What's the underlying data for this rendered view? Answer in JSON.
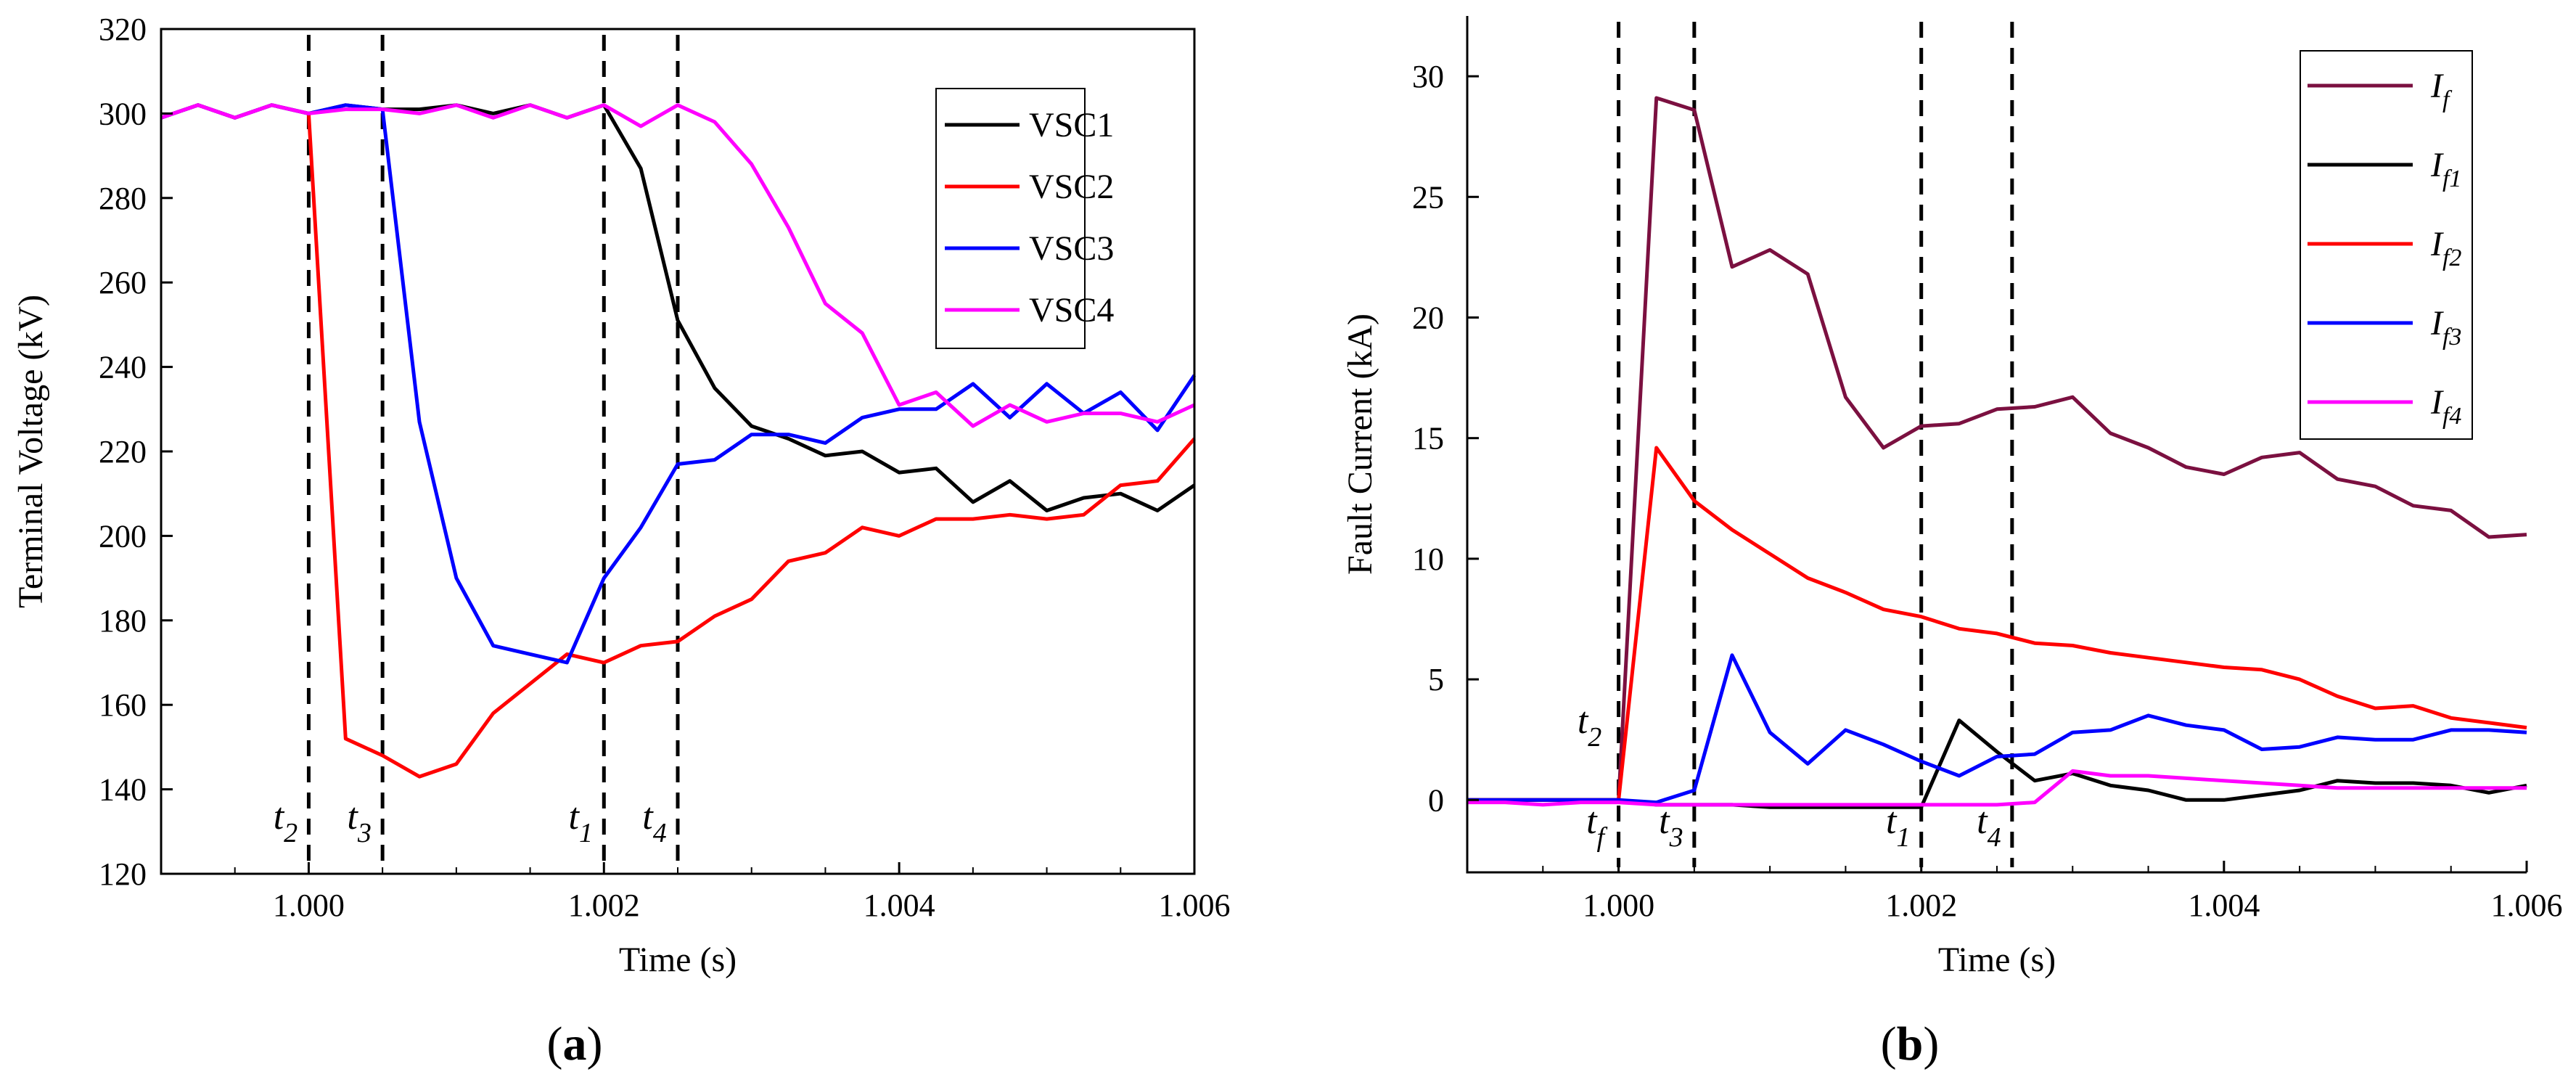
{
  "figure": {
    "panel_a_label": {
      "open": "(",
      "letter": "a",
      "close": ")"
    },
    "panel_b_label": {
      "open": "(",
      "letter": "b",
      "close": ")"
    }
  },
  "chart_data": [
    {
      "panel": "a",
      "type": "line",
      "title": "",
      "xlabel": "Time (s)",
      "ylabel": "Terminal Voltage (kV)",
      "xlim": [
        0.999,
        1.006
      ],
      "ylim": [
        120,
        320
      ],
      "xticks": [
        1.0,
        1.002,
        1.004,
        1.006
      ],
      "xtick_labels": [
        "1.000",
        "1.002",
        "1.004",
        "1.006"
      ],
      "yticks": [
        120,
        140,
        160,
        180,
        200,
        220,
        240,
        260,
        280,
        300,
        320
      ],
      "ytick_labels": [
        "120",
        "140",
        "160",
        "180",
        "200",
        "220",
        "240",
        "260",
        "280",
        "300",
        "320"
      ],
      "legend_position": "top-right",
      "series": [
        {
          "name": "VSC1",
          "color": "#000000",
          "x": [
            0.999,
            0.99925,
            0.9995,
            0.99975,
            1.0,
            1.00025,
            1.0005,
            1.00075,
            1.001,
            1.00125,
            1.0015,
            1.00175,
            1.002,
            1.00225,
            1.0025,
            1.00275,
            1.003,
            1.00325,
            1.0035,
            1.00375,
            1.004,
            1.00425,
            1.0045,
            1.00475,
            1.005,
            1.00525,
            1.0055,
            1.00575,
            1.006
          ],
          "y": [
            299,
            302,
            299,
            302,
            300,
            302,
            301,
            301,
            302,
            300,
            302,
            299,
            302,
            287,
            251,
            235,
            226,
            223,
            219,
            220,
            215,
            216,
            208,
            213,
            206,
            209,
            210,
            206,
            212
          ]
        },
        {
          "name": "VSC2",
          "color": "#ff0000",
          "x": [
            0.999,
            0.99925,
            0.9995,
            0.99975,
            1.0,
            1.00025,
            1.0005,
            1.00075,
            1.001,
            1.00125,
            1.0015,
            1.00175,
            1.002,
            1.00225,
            1.0025,
            1.00275,
            1.003,
            1.00325,
            1.0035,
            1.00375,
            1.004,
            1.00425,
            1.0045,
            1.00475,
            1.005,
            1.00525,
            1.0055,
            1.00575,
            1.006
          ],
          "y": [
            299,
            302,
            299,
            302,
            300,
            152,
            148,
            143,
            146,
            158,
            165,
            172,
            170,
            174,
            175,
            181,
            185,
            194,
            196,
            202,
            200,
            204,
            204,
            205,
            204,
            205,
            212,
            213,
            223
          ]
        },
        {
          "name": "VSC3",
          "color": "#0000ff",
          "x": [
            0.999,
            0.99925,
            0.9995,
            0.99975,
            1.0,
            1.00025,
            1.0005,
            1.00075,
            1.001,
            1.00125,
            1.0015,
            1.00175,
            1.002,
            1.00225,
            1.0025,
            1.00275,
            1.003,
            1.00325,
            1.0035,
            1.00375,
            1.004,
            1.00425,
            1.0045,
            1.00475,
            1.005,
            1.00525,
            1.0055,
            1.00575,
            1.006
          ],
          "y": [
            299,
            302,
            299,
            302,
            300,
            302,
            301,
            227,
            190,
            174,
            172,
            170,
            190,
            202,
            217,
            218,
            224,
            224,
            222,
            228,
            230,
            230,
            236,
            228,
            236,
            229,
            234,
            225,
            238
          ]
        },
        {
          "name": "VSC4",
          "color": "#ff00ff",
          "x": [
            0.999,
            0.99925,
            0.9995,
            0.99975,
            1.0,
            1.00025,
            1.0005,
            1.00075,
            1.001,
            1.00125,
            1.0015,
            1.00175,
            1.002,
            1.00225,
            1.0025,
            1.00275,
            1.003,
            1.00325,
            1.0035,
            1.00375,
            1.004,
            1.00425,
            1.0045,
            1.00475,
            1.005,
            1.00525,
            1.0055,
            1.00575,
            1.006
          ],
          "y": [
            299,
            302,
            299,
            302,
            300,
            301,
            301,
            300,
            302,
            299,
            302,
            299,
            302,
            297,
            302,
            298,
            288,
            273,
            255,
            248,
            231,
            234,
            226,
            231,
            227,
            229,
            229,
            227,
            231
          ]
        }
      ],
      "event_markers": [
        {
          "x": 1.0,
          "base": "t",
          "sub": "2"
        },
        {
          "x": 1.0005,
          "base": "t",
          "sub": "3"
        },
        {
          "x": 1.002,
          "base": "t",
          "sub": "1"
        },
        {
          "x": 1.0025,
          "base": "t",
          "sub": "4"
        }
      ]
    },
    {
      "panel": "b",
      "type": "line",
      "title": "",
      "xlabel": "Time (s)",
      "ylabel": "Fault Current (kA)",
      "xlim": [
        0.999,
        1.006
      ],
      "ylim": [
        -3,
        32.5
      ],
      "xticks": [
        1.0,
        1.002,
        1.004,
        1.006
      ],
      "xtick_labels": [
        "1.000",
        "1.002",
        "1.004",
        "1.006"
      ],
      "yticks": [
        0,
        5,
        10,
        15,
        20,
        25,
        30
      ],
      "ytick_labels": [
        "0",
        "5",
        "10",
        "15",
        "20",
        "25",
        "30"
      ],
      "legend_position": "top-right",
      "series": [
        {
          "name": "If",
          "label_base": "I",
          "label_sub": "f",
          "color": "#7b1040",
          "x": [
            0.999,
            0.99925,
            0.9995,
            0.99975,
            1.0,
            1.00025,
            1.0005,
            1.00075,
            1.001,
            1.00125,
            1.0015,
            1.00175,
            1.002,
            1.00225,
            1.0025,
            1.00275,
            1.003,
            1.00325,
            1.0035,
            1.00375,
            1.004,
            1.00425,
            1.0045,
            1.00475,
            1.005,
            1.00525,
            1.0055,
            1.00575,
            1.006
          ],
          "y": [
            0,
            0,
            0,
            0,
            0,
            29.1,
            28.6,
            22.1,
            22.8,
            21.8,
            16.7,
            14.6,
            15.5,
            15.6,
            16.2,
            16.3,
            16.7,
            15.2,
            14.6,
            13.8,
            13.5,
            14.2,
            14.4,
            13.3,
            13.0,
            12.2,
            12.0,
            10.9,
            11.0
          ]
        },
        {
          "name": "If1",
          "label_base": "I",
          "label_sub": "f1",
          "color": "#000000",
          "x": [
            0.999,
            0.99925,
            0.9995,
            0.99975,
            1.0,
            1.00025,
            1.0005,
            1.00075,
            1.001,
            1.00125,
            1.0015,
            1.00175,
            1.002,
            1.00225,
            1.0025,
            1.00275,
            1.003,
            1.00325,
            1.0035,
            1.00375,
            1.004,
            1.00425,
            1.0045,
            1.00475,
            1.005,
            1.00525,
            1.0055,
            1.00575,
            1.006
          ],
          "y": [
            0,
            0,
            0,
            0,
            0,
            -0.2,
            -0.2,
            -0.2,
            -0.3,
            -0.3,
            -0.3,
            -0.3,
            -0.3,
            3.3,
            2.0,
            0.8,
            1.1,
            0.6,
            0.4,
            0.0,
            0.0,
            0.2,
            0.4,
            0.8,
            0.7,
            0.7,
            0.6,
            0.3,
            0.6
          ]
        },
        {
          "name": "If2",
          "label_base": "I",
          "label_sub": "f2",
          "color": "#ff0000",
          "x": [
            0.999,
            0.99925,
            0.9995,
            0.99975,
            1.0,
            1.00025,
            1.0005,
            1.00075,
            1.001,
            1.00125,
            1.0015,
            1.00175,
            1.002,
            1.00225,
            1.0025,
            1.00275,
            1.003,
            1.00325,
            1.0035,
            1.00375,
            1.004,
            1.00425,
            1.0045,
            1.00475,
            1.005,
            1.00525,
            1.0055,
            1.00575,
            1.006
          ],
          "y": [
            0,
            0,
            0,
            0,
            0,
            14.6,
            12.4,
            11.2,
            10.2,
            9.2,
            8.6,
            7.9,
            7.6,
            7.1,
            6.9,
            6.5,
            6.4,
            6.1,
            5.9,
            5.7,
            5.5,
            5.4,
            5.0,
            4.3,
            3.8,
            3.9,
            3.4,
            3.2,
            3.0
          ]
        },
        {
          "name": "If3",
          "label_base": "I",
          "label_sub": "f3",
          "color": "#0000ff",
          "x": [
            0.999,
            0.99925,
            0.9995,
            0.99975,
            1.0,
            1.00025,
            1.0005,
            1.00075,
            1.001,
            1.00125,
            1.0015,
            1.00175,
            1.002,
            1.00225,
            1.0025,
            1.00275,
            1.003,
            1.00325,
            1.0035,
            1.00375,
            1.004,
            1.00425,
            1.0045,
            1.00475,
            1.005,
            1.00525,
            1.0055,
            1.00575,
            1.006
          ],
          "y": [
            0,
            0,
            0,
            0,
            0,
            -0.1,
            0.4,
            6.0,
            2.8,
            1.5,
            2.9,
            2.3,
            1.6,
            1.0,
            1.8,
            1.9,
            2.8,
            2.9,
            3.5,
            3.1,
            2.9,
            2.1,
            2.2,
            2.6,
            2.5,
            2.5,
            2.9,
            2.9,
            2.8
          ]
        },
        {
          "name": "If4",
          "label_base": "I",
          "label_sub": "f4",
          "color": "#ff00ff",
          "x": [
            0.999,
            0.99925,
            0.9995,
            0.99975,
            1.0,
            1.00025,
            1.0005,
            1.00075,
            1.001,
            1.00125,
            1.0015,
            1.00175,
            1.002,
            1.00225,
            1.0025,
            1.00275,
            1.003,
            1.00325,
            1.0035,
            1.00375,
            1.004,
            1.00425,
            1.0045,
            1.00475,
            1.005,
            1.00525,
            1.0055,
            1.00575,
            1.006
          ],
          "y": [
            -0.1,
            -0.1,
            -0.2,
            -0.1,
            -0.1,
            -0.2,
            -0.2,
            -0.2,
            -0.2,
            -0.2,
            -0.2,
            -0.2,
            -0.2,
            -0.2,
            -0.2,
            -0.1,
            1.2,
            1.0,
            1.0,
            0.9,
            0.8,
            0.7,
            0.6,
            0.5,
            0.5,
            0.5,
            0.5,
            0.5,
            0.5
          ]
        }
      ],
      "event_markers": [
        {
          "x": 1.0,
          "base": "t",
          "sub": "f",
          "extra_base": "t",
          "extra_sub": "2"
        },
        {
          "x": 1.0005,
          "base": "t",
          "sub": "3"
        },
        {
          "x": 1.002,
          "base": "t",
          "sub": "1"
        },
        {
          "x": 1.0026,
          "base": "t",
          "sub": "4"
        }
      ]
    }
  ]
}
